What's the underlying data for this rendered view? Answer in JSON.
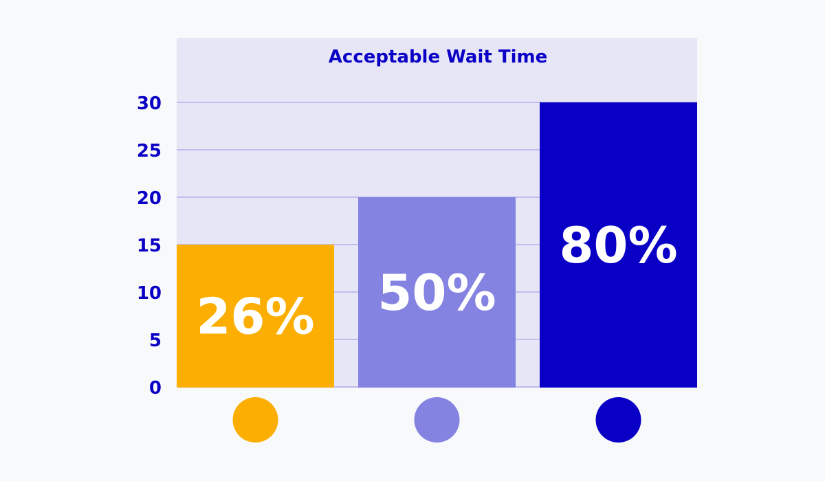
{
  "chart_data": {
    "type": "bar",
    "title": "Acceptable Wait Time",
    "xlabel": "",
    "ylabel": "",
    "ylim": [
      0,
      30
    ],
    "yticks": [
      "0",
      "5",
      "10",
      "15",
      "20",
      "25",
      "30"
    ],
    "grid": true,
    "values": [
      15,
      20,
      30
    ],
    "data_labels": [
      "26%",
      "50%",
      "80%"
    ],
    "colors": [
      "#FCAF02",
      "#8583E1",
      "#0A00C5"
    ],
    "legend": "bottom (color circles, unlabeled)",
    "text_color": "#0A00C5",
    "plot_background": "#E6E6F7",
    "gridline_color": "#A9A7EA"
  }
}
